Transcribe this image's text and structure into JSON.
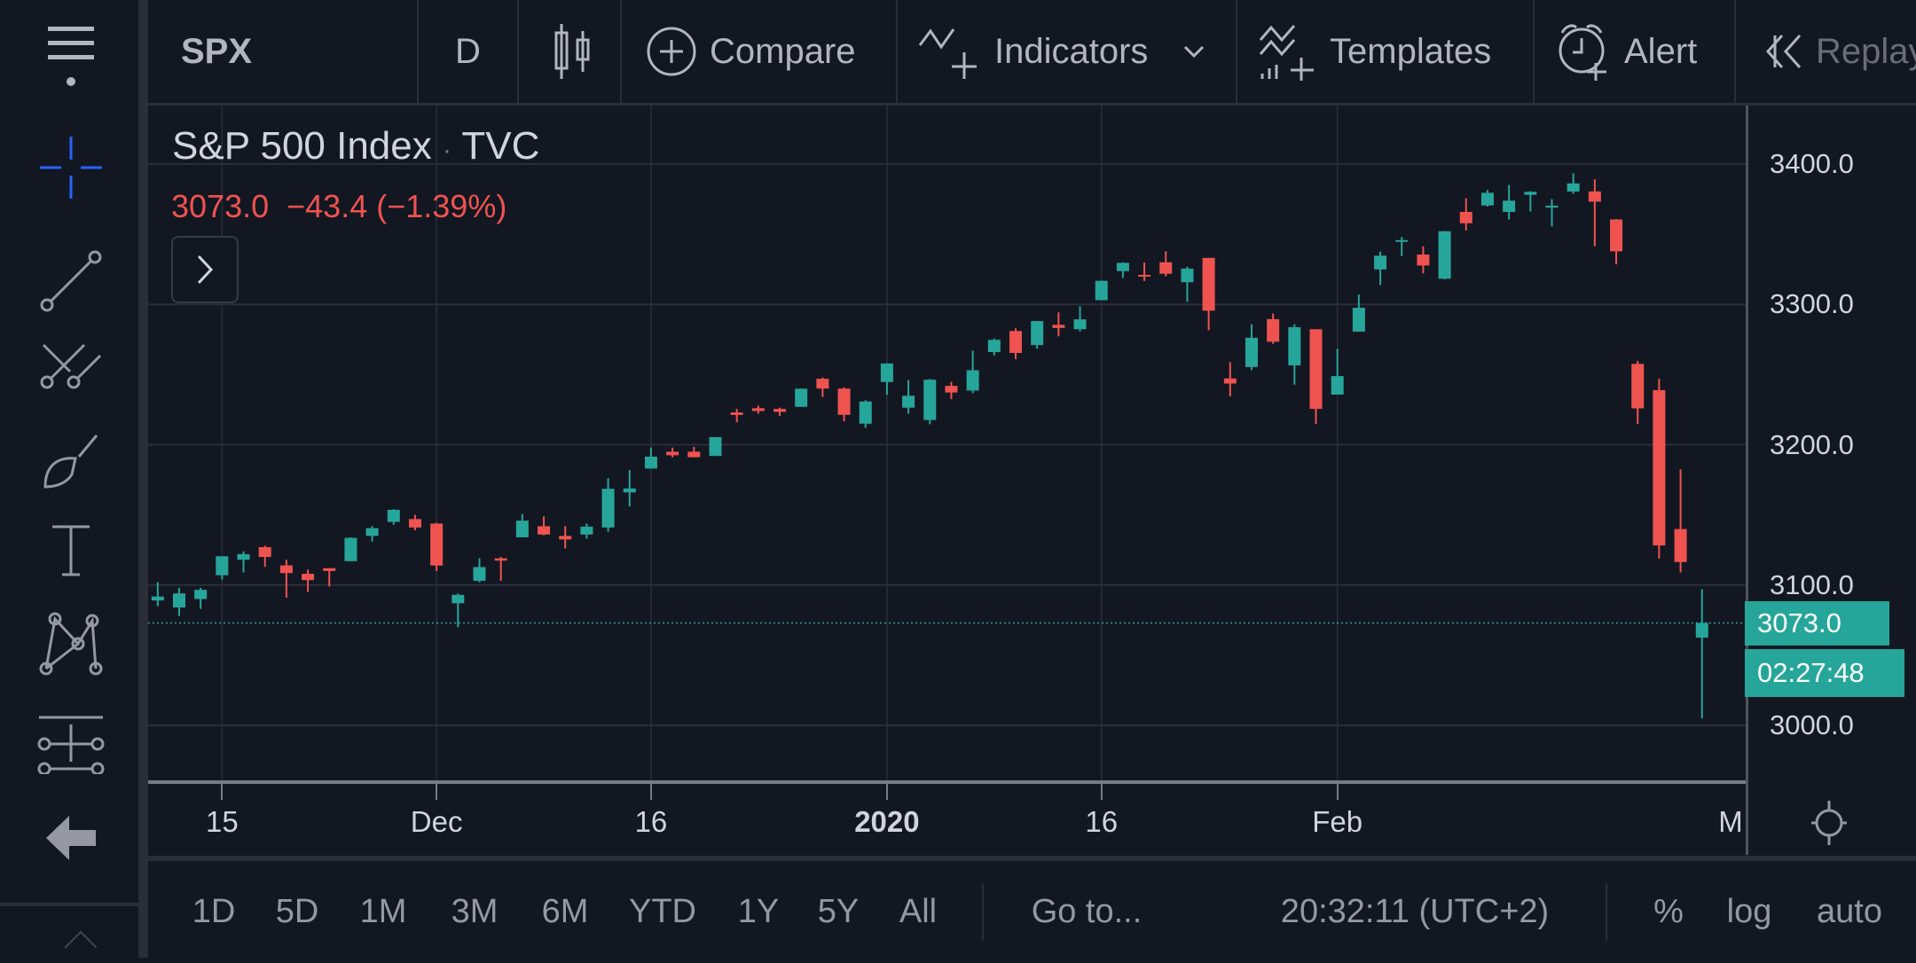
{
  "toolbar": {
    "symbol": "SPX",
    "interval": "D",
    "compare": "Compare",
    "indicators": "Indicators",
    "templates": "Templates",
    "alert": "Alert",
    "replay": "Replay"
  },
  "legend": {
    "title": "S&P 500 Index",
    "separator": "·",
    "exchange": "TVC",
    "price": "3073.0",
    "change": "−43.4",
    "change_pct": "(−1.39%)"
  },
  "left_tools": [
    "crosshair-icon",
    "trend-line-icon",
    "fib-icon",
    "brush-icon",
    "text-icon",
    "pattern-icon",
    "measure-icon",
    "back-arrow-icon"
  ],
  "colors": {
    "up": "#26a69a",
    "down": "#ef5350",
    "background": "#131722",
    "grid": "#2a2e39"
  },
  "price_axis": {
    "ticks": [
      "3400.0",
      "3300.0",
      "3200.0",
      "3100.0",
      "3000.0"
    ],
    "last_price": "3073.0",
    "countdown": "02:27:48"
  },
  "time_axis": {
    "labels": [
      "15",
      "Dec",
      "16",
      "2020",
      "16",
      "Feb",
      "M"
    ]
  },
  "bottombar": {
    "ranges": [
      "1D",
      "5D",
      "1M",
      "3M",
      "6M",
      "YTD",
      "1Y",
      "5Y",
      "All"
    ],
    "goto": "Go to...",
    "clock": "20:32:11 (UTC+2)",
    "percent": "%",
    "log": "log",
    "auto": "auto"
  },
  "chart_data": {
    "type": "candlestick",
    "last_price": 3073.0,
    "ylim": [
      2950,
      3430
    ],
    "columns": [
      "date",
      "open",
      "high",
      "low",
      "close"
    ],
    "candles": [
      [
        "2019-11-12",
        3089,
        3102,
        3085,
        3091.8
      ],
      [
        "2019-11-13",
        3084,
        3098,
        3078,
        3094
      ],
      [
        "2019-11-14",
        3090,
        3098,
        3083,
        3096.6
      ],
      [
        "2019-11-15",
        3107,
        3120.5,
        3104,
        3120.5
      ],
      [
        "2019-11-18",
        3118,
        3124,
        3109,
        3122
      ],
      [
        "2019-11-19",
        3127,
        3128,
        3113,
        3120
      ],
      [
        "2019-11-20",
        3114,
        3118,
        3091,
        3108.5
      ],
      [
        "2019-11-21",
        3108,
        3111,
        3095,
        3103.5
      ],
      [
        "2019-11-22",
        3112,
        3112,
        3099,
        3110
      ],
      [
        "2019-11-25",
        3117,
        3134,
        3117,
        3133.6
      ],
      [
        "2019-11-26",
        3135,
        3142,
        3131,
        3140.5
      ],
      [
        "2019-11-27",
        3145,
        3154,
        3143,
        3153.6
      ],
      [
        "2019-11-29",
        3147,
        3150,
        3139,
        3141
      ],
      [
        "2019-12-02",
        3143.8,
        3144.3,
        3110,
        3113.9
      ],
      [
        "2019-12-03",
        3087,
        3094,
        3070,
        3093
      ],
      [
        "2019-12-04",
        3103,
        3119,
        3102,
        3112.8
      ],
      [
        "2019-12-05",
        3119,
        3120,
        3103,
        3117.4
      ],
      [
        "2019-12-06",
        3134,
        3150.6,
        3134,
        3145.9
      ],
      [
        "2019-12-09",
        3141.9,
        3148.9,
        3135.5,
        3136
      ],
      [
        "2019-12-10",
        3135,
        3142,
        3126,
        3132.5
      ],
      [
        "2019-12-11",
        3136,
        3143.9,
        3133,
        3141.6
      ],
      [
        "2019-12-12",
        3141,
        3176,
        3138,
        3168.6
      ],
      [
        "2019-12-13",
        3166,
        3182,
        3156,
        3168.8
      ],
      [
        "2019-12-16",
        3183,
        3198,
        3183,
        3191.5
      ],
      [
        "2019-12-17",
        3195,
        3198,
        3191,
        3192.5
      ],
      [
        "2019-12-18",
        3195,
        3198.5,
        3191,
        3191.1
      ],
      [
        "2019-12-19",
        3192,
        3205.5,
        3192,
        3205.4
      ],
      [
        "2019-12-20",
        3223,
        3225.6,
        3216,
        3221.2
      ],
      [
        "2019-12-23",
        3226,
        3227.8,
        3222,
        3224
      ],
      [
        "2019-12-24",
        3225.5,
        3226.4,
        3220.5,
        3223.4
      ],
      [
        "2019-12-26",
        3227,
        3240,
        3227,
        3239.9
      ],
      [
        "2019-12-27",
        3247,
        3247.9,
        3234,
        3240
      ],
      [
        "2019-12-30",
        3240,
        3240.9,
        3216.6,
        3221.3
      ],
      [
        "2019-12-31",
        3215,
        3231.7,
        3212,
        3230.8
      ],
      [
        "2020-01-02",
        3244.7,
        3258,
        3235.5,
        3257.9
      ],
      [
        "2020-01-03",
        3226.4,
        3246,
        3222,
        3234.9
      ],
      [
        "2020-01-06",
        3217.6,
        3246.8,
        3214.6,
        3246.3
      ],
      [
        "2020-01-07",
        3241.9,
        3244.9,
        3232.4,
        3237.2
      ],
      [
        "2020-01-08",
        3238.6,
        3267,
        3236.7,
        3253.1
      ],
      [
        "2020-01-09",
        3266,
        3275.6,
        3263.7,
        3274.7
      ],
      [
        "2020-01-10",
        3281,
        3282.9,
        3260.9,
        3265.4
      ],
      [
        "2020-01-13",
        3271,
        3288.1,
        3268.4,
        3288.1
      ],
      [
        "2020-01-14",
        3285.4,
        3294.3,
        3277.2,
        3283.2
      ],
      [
        "2020-01-15",
        3282.3,
        3298.7,
        3280.7,
        3289.3
      ],
      [
        "2020-01-16",
        3303,
        3317,
        3303,
        3316.8
      ],
      [
        "2020-01-17",
        3323.7,
        3329.9,
        3318.9,
        3329.6
      ],
      [
        "2020-01-21",
        3321,
        3329.8,
        3316.6,
        3320.8
      ],
      [
        "2020-01-22",
        3330,
        3337.8,
        3320,
        3321.8
      ],
      [
        "2020-01-23",
        3315.8,
        3326.9,
        3301.9,
        3325.5
      ],
      [
        "2020-01-24",
        3333.1,
        3333.2,
        3281.5,
        3295.5
      ],
      [
        "2020-01-27",
        3247.2,
        3258.9,
        3234.5,
        3243.6
      ],
      [
        "2020-01-28",
        3255.4,
        3285.8,
        3253.2,
        3276.2
      ],
      [
        "2020-01-29",
        3289.5,
        3293.5,
        3271.9,
        3273.4
      ],
      [
        "2020-01-30",
        3256.5,
        3285.9,
        3242.8,
        3283.7
      ],
      [
        "2020-01-31",
        3282.3,
        3282.3,
        3214.7,
        3225.5
      ],
      [
        "2020-02-03",
        3235.7,
        3268.4,
        3235.7,
        3248.9
      ],
      [
        "2020-02-04",
        3280.6,
        3306.9,
        3280.6,
        3297.6
      ],
      [
        "2020-02-05",
        3324.9,
        3337.6,
        3313.8,
        3334.7
      ],
      [
        "2020-02-06",
        3344.9,
        3348,
        3334.4,
        3345.8
      ],
      [
        "2020-02-07",
        3335.5,
        3341.4,
        3322.1,
        3327.7
      ],
      [
        "2020-02-10",
        3318.3,
        3352.3,
        3317.8,
        3352.1
      ],
      [
        "2020-02-11",
        3365.9,
        3375.6,
        3352.7,
        3357.8
      ],
      [
        "2020-02-12",
        3370.5,
        3381.5,
        3369.7,
        3379.5
      ],
      [
        "2020-02-13",
        3365.9,
        3385.1,
        3360.5,
        3373.9
      ],
      [
        "2020-02-14",
        3378.1,
        3380.7,
        3366.2,
        3380.2
      ],
      [
        "2020-02-18",
        3369,
        3375,
        3355.6,
        3370.3
      ],
      [
        "2020-02-19",
        3380.4,
        3393.5,
        3378.8,
        3386.2
      ],
      [
        "2020-02-20",
        3380.5,
        3389.2,
        3341.5,
        3373.2
      ],
      [
        "2020-02-21",
        3360.5,
        3360.8,
        3328.5,
        3337.8
      ],
      [
        "2020-02-24",
        3257.6,
        3259.8,
        3214.7,
        3225.9
      ],
      [
        "2020-02-25",
        3238.9,
        3247,
        3118.8,
        3128.2
      ],
      [
        "2020-02-26",
        3139.9,
        3182.5,
        3109,
        3116.4
      ],
      [
        "2020-02-27",
        3062.5,
        3097,
        3005,
        3073
      ]
    ]
  }
}
